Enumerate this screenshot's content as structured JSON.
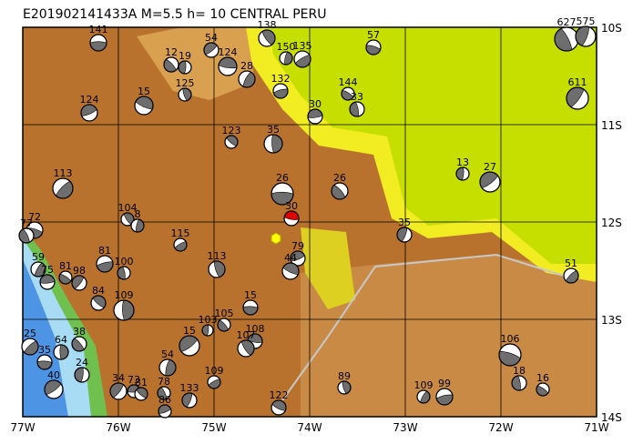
{
  "header": {
    "title": "E201902141433A M=5.5 h= 10 CENTRAL PERU"
  },
  "axes": {
    "x": [
      "77W",
      "76W",
      "75W",
      "74W",
      "73W",
      "72W",
      "71W"
    ],
    "y": [
      "10S",
      "11S",
      "12S",
      "13S",
      "14S"
    ]
  },
  "events": [
    {
      "label": "141"
    },
    {
      "label": "12"
    },
    {
      "label": "19"
    },
    {
      "label": "54"
    },
    {
      "label": "124"
    },
    {
      "label": "138"
    },
    {
      "label": "150"
    },
    {
      "label": "135"
    },
    {
      "label": "57"
    },
    {
      "label": "627"
    },
    {
      "label": "575"
    },
    {
      "label": "124"
    },
    {
      "label": "15"
    },
    {
      "label": "125"
    },
    {
      "label": "28"
    },
    {
      "label": "132"
    },
    {
      "label": "144"
    },
    {
      "label": "33"
    },
    {
      "label": "611"
    },
    {
      "label": "30"
    },
    {
      "label": "123"
    },
    {
      "label": "35"
    },
    {
      "label": "113"
    },
    {
      "label": "26"
    },
    {
      "label": "26"
    },
    {
      "label": "13"
    },
    {
      "label": "27"
    },
    {
      "label": "30"
    },
    {
      "label": "104"
    },
    {
      "label": "8"
    },
    {
      "label": "115"
    },
    {
      "label": "72"
    },
    {
      "label": "77"
    },
    {
      "label": "35"
    },
    {
      "label": "79"
    },
    {
      "label": "44"
    },
    {
      "label": "113"
    },
    {
      "label": "59"
    },
    {
      "label": "81"
    },
    {
      "label": "81"
    },
    {
      "label": "100"
    },
    {
      "label": "98"
    },
    {
      "label": "75"
    },
    {
      "label": "84"
    },
    {
      "label": "109"
    },
    {
      "label": "51"
    },
    {
      "label": "15"
    },
    {
      "label": "105"
    },
    {
      "label": "103"
    },
    {
      "label": "15"
    },
    {
      "label": "108"
    },
    {
      "label": "107"
    },
    {
      "label": "54"
    },
    {
      "label": "109"
    },
    {
      "label": "106"
    },
    {
      "label": "78"
    },
    {
      "label": "133"
    },
    {
      "label": "86"
    },
    {
      "label": "122"
    },
    {
      "label": "89"
    },
    {
      "label": "109"
    },
    {
      "label": "99"
    },
    {
      "label": "16"
    },
    {
      "label": "18"
    },
    {
      "label": "34"
    },
    {
      "label": "73"
    },
    {
      "label": "81"
    },
    {
      "label": "64"
    },
    {
      "label": "25"
    },
    {
      "label": "35"
    },
    {
      "label": "38"
    },
    {
      "label": "24"
    },
    {
      "label": "40"
    }
  ]
}
